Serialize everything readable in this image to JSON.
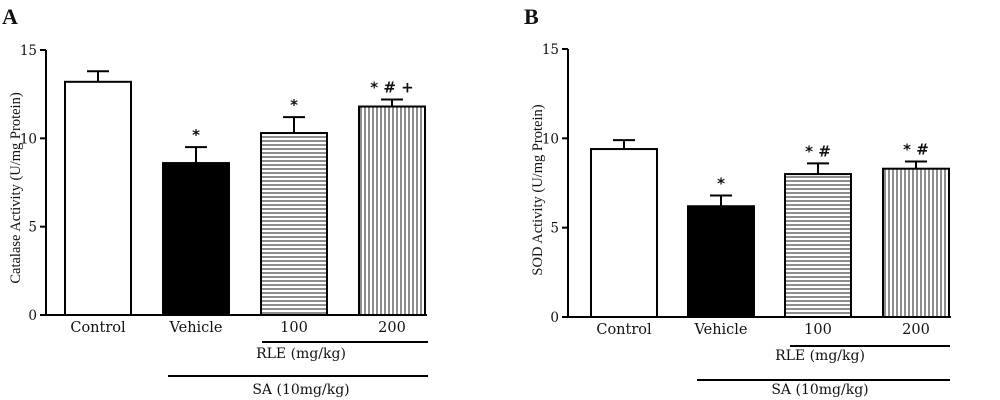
{
  "chart_data": [
    {
      "type": "bar",
      "panel_label": "A",
      "categories": [
        "Control",
        "Vehicle",
        "100",
        "200"
      ],
      "values": [
        13.2,
        8.6,
        10.3,
        11.8
      ],
      "errors": [
        0.6,
        0.9,
        0.9,
        0.4
      ],
      "significance": [
        "",
        "*",
        "*",
        "* # +"
      ],
      "fills": [
        "white",
        "black",
        "horizontal-stripes",
        "vertical-stripes"
      ],
      "ylabel": "Catalase Activity (U/mg Protein)",
      "ylim": [
        0,
        15
      ],
      "yticks": [
        0,
        5,
        10,
        15
      ],
      "grid": false,
      "group_labels": {
        "rle": "RLE (mg/kg)",
        "sa": "SA (10mg/kg)"
      }
    },
    {
      "type": "bar",
      "panel_label": "B",
      "categories": [
        "Control",
        "Vehicle",
        "100",
        "200"
      ],
      "values": [
        9.4,
        6.2,
        8.0,
        8.3
      ],
      "errors": [
        0.5,
        0.6,
        0.6,
        0.4
      ],
      "significance": [
        "",
        "*",
        "* #",
        "* #"
      ],
      "fills": [
        "white",
        "black",
        "horizontal-stripes",
        "vertical-stripes"
      ],
      "ylabel": "SOD Activity (U/mg Protein)",
      "ylim": [
        0,
        15
      ],
      "yticks": [
        0,
        5,
        10,
        15
      ],
      "grid": false,
      "group_labels": {
        "rle": "RLE (mg/kg)",
        "sa": "SA (10mg/kg)"
      }
    }
  ]
}
